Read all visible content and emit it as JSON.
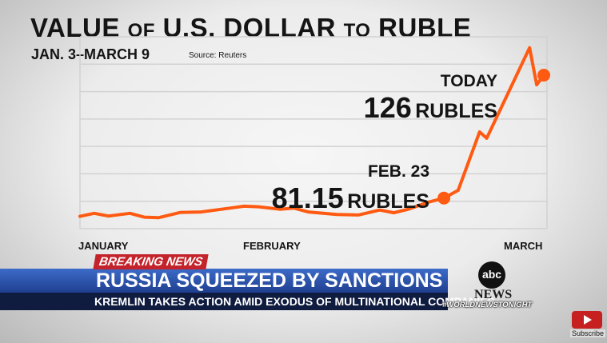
{
  "header": {
    "title_word1": "VALUE",
    "title_word2": "OF",
    "title_word3": "U.S. DOLLAR",
    "title_word4": "TO",
    "title_word5": "RUBLE",
    "subtitle": "JAN. 3–MARCH 9",
    "source": "Source: Reuters"
  },
  "annotations": {
    "today_label": "TODAY",
    "today_value": "126",
    "today_unit": "RUBLES",
    "feb_label": "FEB. 23",
    "feb_value": "81.15",
    "feb_unit": "RUBLES"
  },
  "chart_data": {
    "type": "line",
    "title": "VALUE OF U.S. DOLLAR TO RUBLE",
    "subtitle": "JAN. 3–MARCH 9",
    "source": "Source: Reuters",
    "x_tick_labels": [
      "JANUARY",
      "FEBRUARY",
      "MARCH"
    ],
    "ylim": [
      70,
      140
    ],
    "grid": true,
    "line_color": "#ff5a12",
    "series": [
      {
        "values": [
          {
            "date": "2022-01-03",
            "value": 74.5
          },
          {
            "date": "2022-01-05",
            "value": 75.6
          },
          {
            "date": "2022-01-07",
            "value": 74.6
          },
          {
            "date": "2022-01-10",
            "value": 75.6
          },
          {
            "date": "2022-01-12",
            "value": 74.2
          },
          {
            "date": "2022-01-14",
            "value": 74.0
          },
          {
            "date": "2022-01-17",
            "value": 75.9
          },
          {
            "date": "2022-01-20",
            "value": 76.1
          },
          {
            "date": "2022-01-24",
            "value": 77.5
          },
          {
            "date": "2022-01-26",
            "value": 78.2
          },
          {
            "date": "2022-01-28",
            "value": 78.0
          },
          {
            "date": "2022-01-31",
            "value": 77.1
          },
          {
            "date": "2022-02-02",
            "value": 77.5
          },
          {
            "date": "2022-02-04",
            "value": 76.1
          },
          {
            "date": "2022-02-08",
            "value": 75.2
          },
          {
            "date": "2022-02-11",
            "value": 75.0
          },
          {
            "date": "2022-02-14",
            "value": 76.8
          },
          {
            "date": "2022-02-16",
            "value": 75.8
          },
          {
            "date": "2022-02-18",
            "value": 77.1
          },
          {
            "date": "2022-02-21",
            "value": 79.8
          },
          {
            "date": "2022-02-23",
            "value": 81.15
          },
          {
            "date": "2022-02-25",
            "value": 84.0
          },
          {
            "date": "2022-02-28",
            "value": 105.3
          },
          {
            "date": "2022-03-01",
            "value": 103.0
          },
          {
            "date": "2022-03-07",
            "value": 136.0
          },
          {
            "date": "2022-03-08",
            "value": 122.5
          },
          {
            "date": "2022-03-09",
            "value": 126.0
          }
        ]
      }
    ],
    "highlight_points": [
      {
        "date": "2022-02-23",
        "value": 81.15,
        "label": "FEB. 23"
      },
      {
        "date": "2022-03-09",
        "value": 126.0,
        "label": "TODAY"
      }
    ]
  },
  "ticker": {
    "breaking_label": "BREAKING NEWS",
    "headline": "RUSSIA SQUEEZED BY SANCTIONS",
    "subheadline": "KREMLIN TAKES ACTION AMID EXODUS OF MULTINATIONAL COMPANIES",
    "hashtag": "#WORLDNEWSTONIGHT"
  },
  "branding": {
    "logo_text": "abc",
    "news_text": "NEWS",
    "subscribe_label": "Subscribe",
    "accent_red": "#c4232b",
    "bar_blue": "#2b55b0"
  }
}
